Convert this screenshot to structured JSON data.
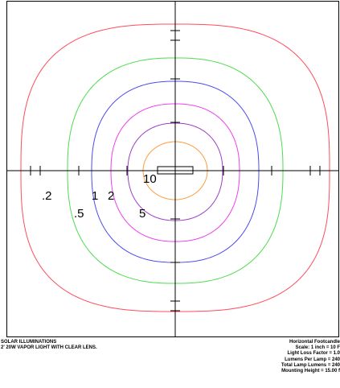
{
  "colors": {
    "frame": "#000000",
    "axes": "#000000",
    "luminaire": "#000000",
    "contours": [
      "#ff4b5c",
      "#4ddc4d",
      "#4b4bf0",
      "#ee3fee",
      "#9b3ec4",
      "#ff9a3c"
    ]
  },
  "contours": [
    {
      "level": ".2",
      "color": "#ff4b5c"
    },
    {
      "level": ".5",
      "color": "#4ddc4d"
    },
    {
      "level": "1",
      "color": "#4b4bf0"
    },
    {
      "level": "2",
      "color": "#ee3fee"
    },
    {
      "level": "5",
      "color": "#9b3ec4"
    },
    {
      "level": "10",
      "color": "#ff9a3c"
    }
  ],
  "footer": {
    "left": [
      "SOLAR ILLUMINATIONS",
      "2' 20W VAPOR LIGHT WITH CLEAR LENS."
    ],
    "right": [
      "Horizontal Footcandle",
      "Scale: 1 inch = 10 F",
      "Light Loss Factor = 1.0",
      "Lumens Per Lamp = 240",
      "Total Lamp Lumens = 240",
      "Mounting Height = 15.00 f"
    ]
  }
}
